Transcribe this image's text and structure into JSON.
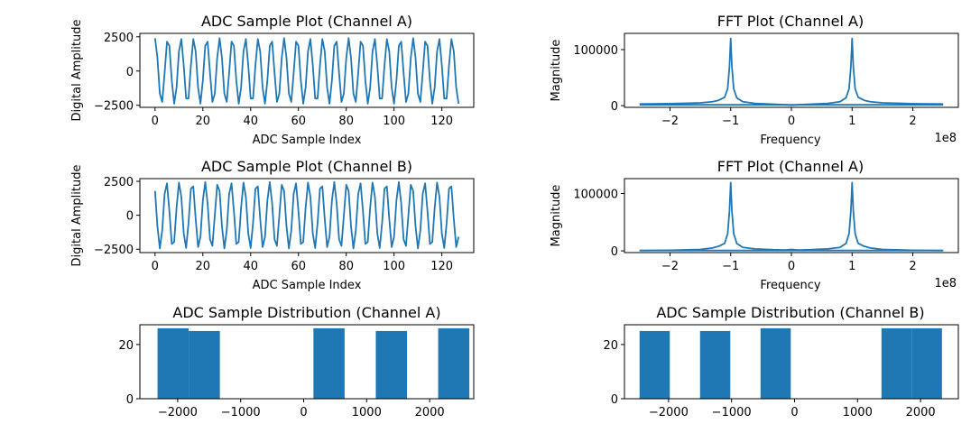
{
  "chart_data": [
    {
      "id": "adc-a",
      "type": "line",
      "title": "ADC Sample Plot (Channel A)",
      "xlabel": "ADC Sample Index",
      "ylabel": "Digital Amplitude",
      "xlim": [
        -6.35,
        133.35
      ],
      "ylim": [
        -2650,
        2750
      ],
      "xticks": [
        0,
        20,
        40,
        60,
        80,
        100,
        120
      ],
      "yticks": [
        -2500,
        0,
        2500
      ],
      "series": [
        {
          "x_start": 0,
          "x_step": 1,
          "count": 128,
          "amplitude": 2400,
          "period": 5.4,
          "phase": 0
        }
      ]
    },
    {
      "id": "fft-a-top",
      "type": "line",
      "title": "FFT Plot (Channel A)",
      "xlabel": "Frequency",
      "ylabel": "Magnitude",
      "offset_text": "1e8",
      "xlim": [
        -2.75,
        2.75
      ],
      "ylim": [
        -3000,
        129000
      ],
      "xticks": [
        -2,
        -1,
        0,
        1,
        2
      ],
      "yticks": [
        0,
        100000
      ],
      "series": [
        {
          "x": [
            -2.5,
            -2.0,
            -1.5,
            -1.3,
            -1.2,
            -1.1,
            -1.05,
            -1.02,
            -1.0,
            -0.98,
            -0.95,
            -0.9,
            -0.8,
            -0.6,
            -0.3,
            -0.1,
            0.0,
            0.1,
            0.3,
            0.6,
            0.8,
            0.9,
            0.95,
            0.98,
            1.0,
            1.02,
            1.05,
            1.1,
            1.2,
            1.3,
            1.5,
            2.0,
            2.5
          ],
          "y": [
            3000,
            3500,
            5000,
            7000,
            9500,
            15000,
            30000,
            70000,
            120000,
            70000,
            30000,
            14000,
            7000,
            4000,
            2500,
            1500,
            800,
            1500,
            2500,
            4000,
            7000,
            14000,
            30000,
            70000,
            120000,
            70000,
            30000,
            15000,
            9500,
            7000,
            5000,
            3500,
            3000
          ]
        },
        {
          "x": [
            -2.5,
            2.5
          ],
          "y": [
            1500,
            1500
          ]
        }
      ]
    },
    {
      "id": "adc-b",
      "type": "line",
      "title": "ADC Sample Plot (Channel B)",
      "xlabel": "ADC Sample Index",
      "ylabel": "Digital Amplitude",
      "xlim": [
        -6.35,
        133.35
      ],
      "ylim": [
        -2750,
        2700
      ],
      "xticks": [
        0,
        20,
        40,
        60,
        80,
        100,
        120
      ],
      "yticks": [
        -2500,
        0,
        2500
      ],
      "series": [
        {
          "x_start": 0,
          "x_step": 1,
          "count": 128,
          "amplitude": 2450,
          "period": 5.4,
          "phase": 0.75
        }
      ]
    },
    {
      "id": "fft-a-bottom",
      "type": "line",
      "title": "FFT Plot (Channel A)",
      "xlabel": "Frequency",
      "ylabel": "Magnitude",
      "offset_text": "1e8",
      "xlim": [
        -2.75,
        2.75
      ],
      "ylim": [
        -3000,
        126000
      ],
      "xticks": [
        -2,
        -1,
        0,
        1,
        2
      ],
      "yticks": [
        0,
        100000
      ],
      "series": [
        {
          "x": [
            -2.5,
            -2.0,
            -1.5,
            -1.3,
            -1.2,
            -1.1,
            -1.05,
            -1.02,
            -1.0,
            -0.98,
            -0.95,
            -0.9,
            -0.8,
            -0.6,
            -0.3,
            -0.1,
            0.0,
            0.1,
            0.3,
            0.6,
            0.8,
            0.9,
            0.95,
            0.98,
            1.0,
            1.02,
            1.05,
            1.1,
            1.2,
            1.3,
            1.5,
            2.0,
            2.5
          ],
          "y": [
            500,
            1000,
            2500,
            5000,
            8000,
            13000,
            30000,
            70000,
            119000,
            70000,
            30000,
            13000,
            6000,
            3500,
            2000,
            1500,
            2500,
            1500,
            2000,
            3500,
            6000,
            13000,
            30000,
            70000,
            119000,
            70000,
            30000,
            13000,
            8000,
            5000,
            2500,
            1000,
            500
          ]
        },
        {
          "x": [
            -2.5,
            2.5
          ],
          "y": [
            600,
            600
          ]
        }
      ]
    },
    {
      "id": "hist-a",
      "type": "bar",
      "title": "ADC Sample Distribution (Channel A)",
      "xlabel": "",
      "ylabel": "",
      "xlim": [
        -2600,
        2700
      ],
      "ylim": [
        0,
        27.3
      ],
      "xticks": [
        -2000,
        -1000,
        0,
        1000,
        2000
      ],
      "yticks": [
        0,
        20
      ],
      "bins": [
        {
          "x0": -2320,
          "x1": -1825,
          "value": 26
        },
        {
          "x0": -1825,
          "x1": -1330,
          "value": 25
        },
        {
          "x0": -1330,
          "x1": -835,
          "value": 0
        },
        {
          "x0": -835,
          "x1": -340,
          "value": 0
        },
        {
          "x0": -340,
          "x1": 155,
          "value": 0
        },
        {
          "x0": 155,
          "x1": 650,
          "value": 26
        },
        {
          "x0": 650,
          "x1": 1145,
          "value": 0
        },
        {
          "x0": 1145,
          "x1": 1640,
          "value": 25
        },
        {
          "x0": 1640,
          "x1": 2135,
          "value": 0
        },
        {
          "x0": 2135,
          "x1": 2630,
          "value": 26
        }
      ]
    },
    {
      "id": "hist-b",
      "type": "bar",
      "title": "ADC Sample Distribution (Channel B)",
      "xlabel": "",
      "ylabel": "",
      "xlim": [
        -2700,
        2600
      ],
      "ylim": [
        0,
        27.3
      ],
      "xticks": [
        -2000,
        -1000,
        0,
        1000,
        2000
      ],
      "yticks": [
        0,
        20
      ],
      "bins": [
        {
          "x0": -2460,
          "x1": -1980,
          "value": 25
        },
        {
          "x0": -1980,
          "x1": -1500,
          "value": 0
        },
        {
          "x0": -1500,
          "x1": -1020,
          "value": 25
        },
        {
          "x0": -1020,
          "x1": -540,
          "value": 0
        },
        {
          "x0": -540,
          "x1": -60,
          "value": 26
        },
        {
          "x0": -60,
          "x1": 420,
          "value": 0
        },
        {
          "x0": 420,
          "x1": 900,
          "value": 0
        },
        {
          "x0": 900,
          "x1": 1380,
          "value": 0
        },
        {
          "x0": 1380,
          "x1": 1860,
          "value": 26
        },
        {
          "x0": 1860,
          "x1": 2340,
          "value": 26
        }
      ]
    }
  ]
}
